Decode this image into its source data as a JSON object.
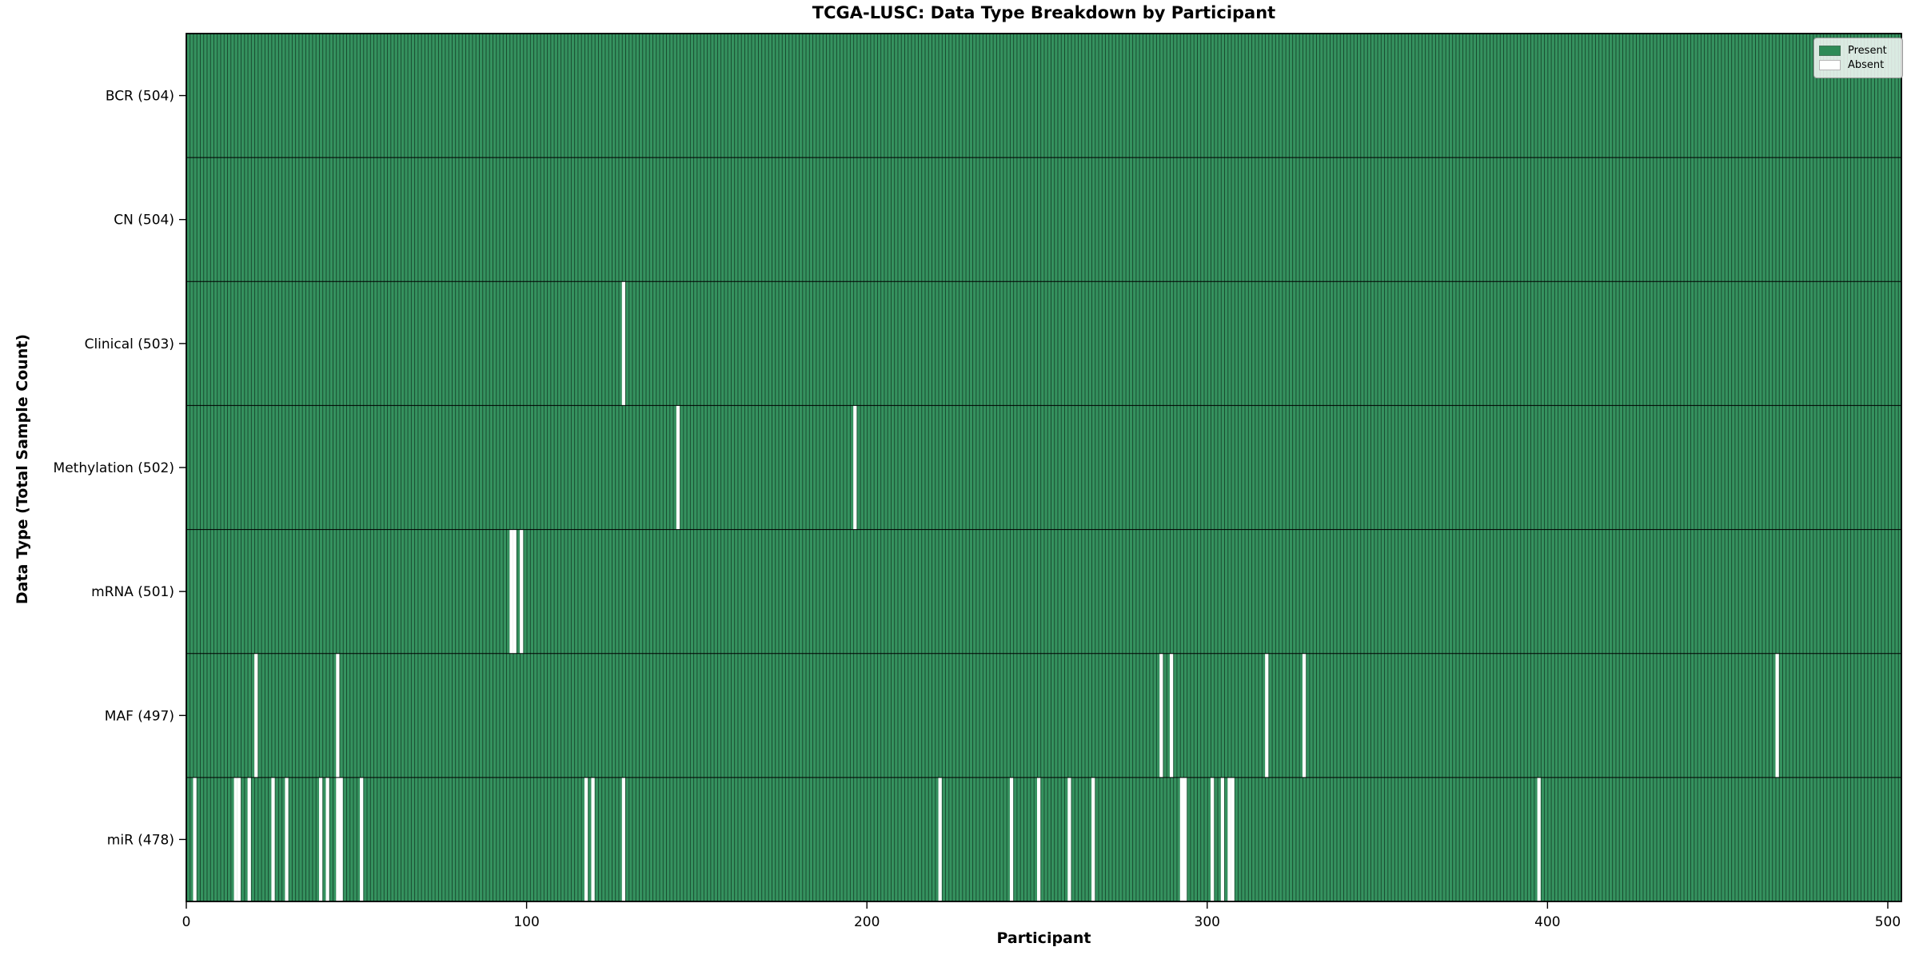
{
  "title": "TCGA-LUSC: Data Type Breakdown by Participant",
  "chart_data": {
    "type": "heatmap",
    "title": "TCGA-LUSC: Data Type Breakdown by Participant",
    "xlabel": "Participant",
    "ylabel": "Data Type (Total Sample Count)",
    "x_ticks": [
      0,
      100,
      200,
      300,
      400,
      500
    ],
    "xlim": [
      0,
      504
    ],
    "total_participants": 504,
    "grid": false,
    "legend_position": "upper right",
    "legend": [
      {
        "label": "Present",
        "color": "#2E8B57"
      },
      {
        "label": "Absent",
        "color": "#FFFFFF"
      }
    ],
    "colors": {
      "present_fill": "#35925f",
      "bar_edge": "#16452b",
      "absent_fill": "#FFFFFF",
      "row_separator": "#000000",
      "spine": "#000000"
    },
    "rows": [
      {
        "name": "BCR",
        "label": "BCR (504)",
        "present_count": 504,
        "absent_participants": []
      },
      {
        "name": "CN",
        "label": "CN (504)",
        "present_count": 504,
        "absent_participants": []
      },
      {
        "name": "Clinical",
        "label": "Clinical (503)",
        "present_count": 503,
        "absent_participants": [
          128
        ]
      },
      {
        "name": "Methylation",
        "label": "Methylation (502)",
        "present_count": 502,
        "absent_participants": [
          144,
          196
        ]
      },
      {
        "name": "mRNA",
        "label": "mRNA (501)",
        "present_count": 501,
        "absent_participants": [
          95,
          96,
          98
        ]
      },
      {
        "name": "MAF",
        "label": "MAF (497)",
        "present_count": 497,
        "absent_participants": [
          20,
          44,
          286,
          289,
          317,
          328,
          467
        ]
      },
      {
        "name": "miR",
        "label": "miR (478)",
        "present_count": 478,
        "absent_participants": [
          2,
          14,
          15,
          18,
          25,
          29,
          39,
          41,
          44,
          45,
          51,
          117,
          119,
          128,
          221,
          242,
          250,
          259,
          266,
          292,
          293,
          301,
          304,
          306,
          307,
          397
        ]
      }
    ]
  }
}
